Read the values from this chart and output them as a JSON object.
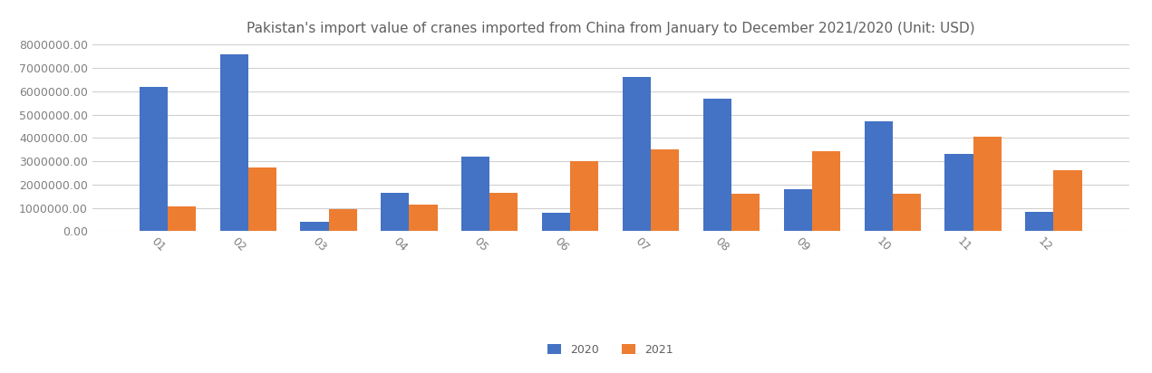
{
  "title": "Pakistan's import value of cranes imported from China from January to December 2021/2020 (Unit: USD)",
  "months": [
    "01",
    "02",
    "03",
    "04",
    "05",
    "06",
    "07",
    "08",
    "09",
    "10",
    "11",
    "12"
  ],
  "values_2020": [
    6200000,
    7600000,
    400000,
    1650000,
    3200000,
    800000,
    6600000,
    5700000,
    1800000,
    4700000,
    3300000,
    850000
  ],
  "values_2021": [
    1050000,
    2750000,
    950000,
    1150000,
    1650000,
    3000000,
    3500000,
    1600000,
    3450000,
    1600000,
    4050000,
    2600000
  ],
  "color_2020": "#4472C4",
  "color_2021": "#ED7D31",
  "ylim": [
    0,
    8000000
  ],
  "yticks": [
    0,
    1000000,
    2000000,
    3000000,
    4000000,
    5000000,
    6000000,
    7000000,
    8000000
  ],
  "legend_labels": [
    "2020",
    "2021"
  ],
  "bar_width": 0.35,
  "background_color": "#ffffff",
  "grid_color": "#d0d0d0",
  "title_fontsize": 11,
  "tick_fontsize": 9,
  "legend_fontsize": 9,
  "xlabel_rotation": -45
}
